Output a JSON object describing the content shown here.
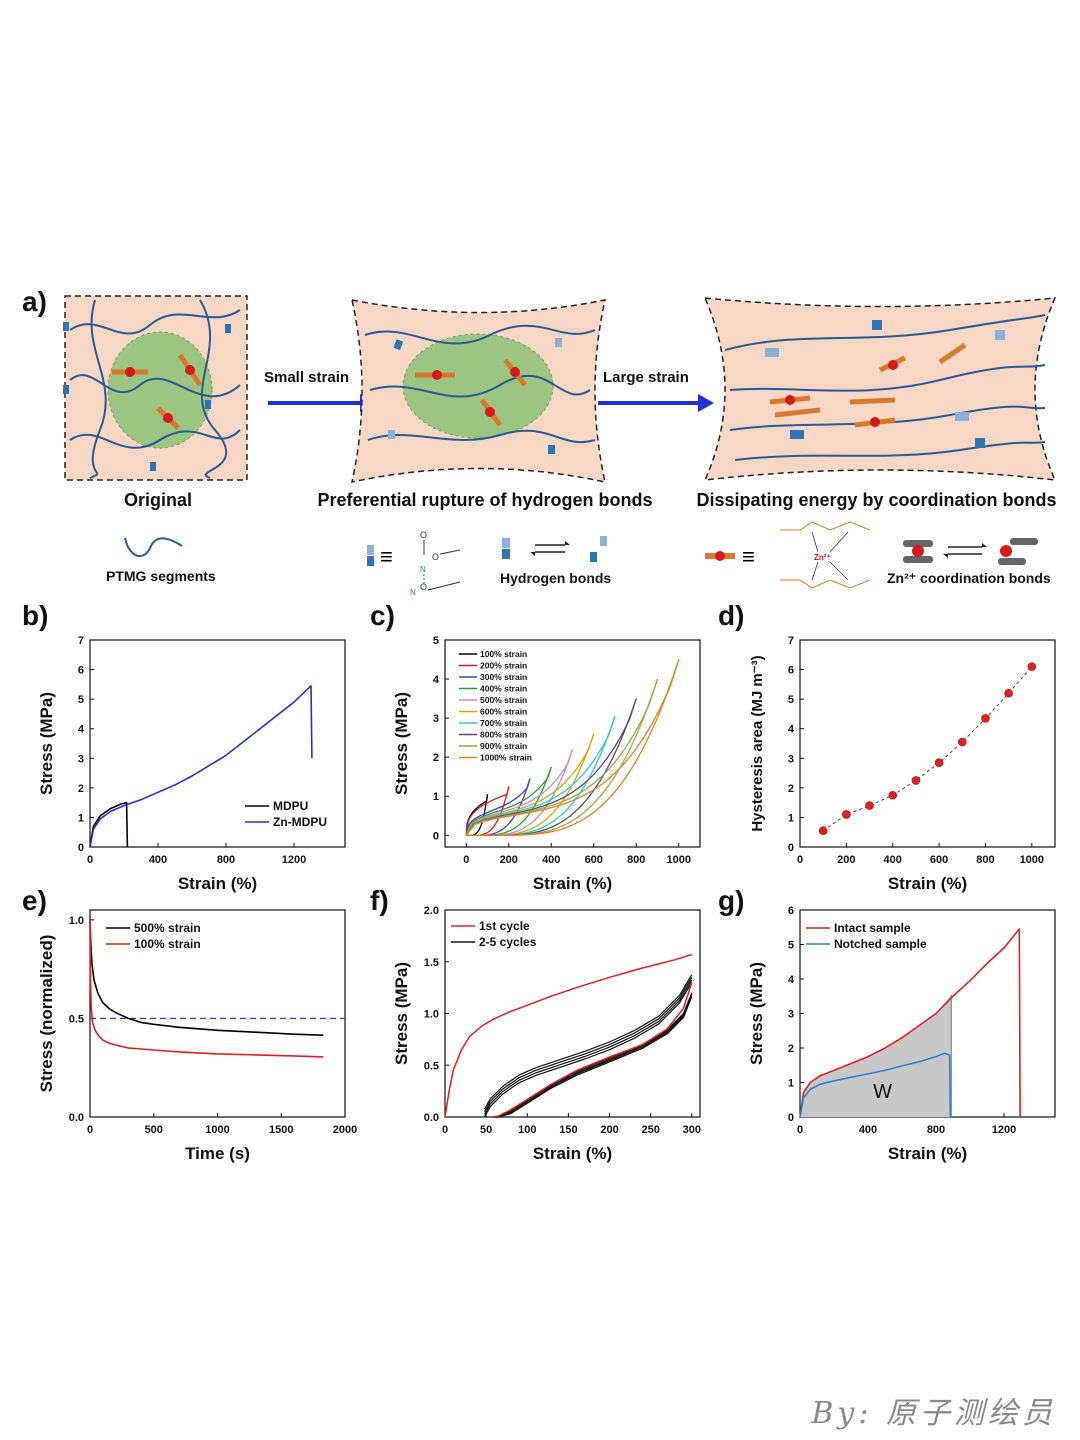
{
  "panel_labels": {
    "a": "a)",
    "b": "b)",
    "c": "c)",
    "d": "d)",
    "e": "e)",
    "f": "f)",
    "g": "g)"
  },
  "schematic": {
    "stage_labels": [
      "Original",
      "Preferential rupture of hydrogen bonds",
      "Dissipating energy by coordination bonds"
    ],
    "arrow_labels": [
      "Small strain",
      "Large strain"
    ],
    "legend": {
      "ptmg": "PTMG segments",
      "hbond": "Hydrogen bonds",
      "coord": "Zn²⁺ coordination bonds",
      "zn": "Zn²⁺"
    },
    "colors": {
      "matrix": "#f9d7c5",
      "domain": "#7cbf6a",
      "chain": "#2a5a95",
      "hb": "#2f75b5",
      "hb_light": "#8cb0d6",
      "arrow": "#1f2fd6",
      "zn": "#d7191c",
      "orange": "#d87a2e"
    }
  },
  "watermark": "By: 原子测绘员",
  "chart_data": [
    {
      "id": "b",
      "type": "line",
      "xlabel": "Strain (%)",
      "ylabel": "Stress (MPa)",
      "xlim": [
        0,
        1500
      ],
      "ylim": [
        0,
        7
      ],
      "xticks": [
        0,
        400,
        800,
        1200
      ],
      "yticks": [
        0,
        1,
        2,
        3,
        4,
        5,
        6,
        7
      ],
      "series": [
        {
          "name": "MDPU",
          "color": "#000000",
          "x": [
            0,
            20,
            60,
            120,
            180,
            215,
            218,
            220
          ],
          "y": [
            0,
            0.7,
            1.05,
            1.3,
            1.45,
            1.5,
            0.5,
            0
          ]
        },
        {
          "name": "Zn-MDPU",
          "color": "#2b2bd6",
          "x": [
            0,
            20,
            60,
            120,
            200,
            300,
            400,
            500,
            600,
            700,
            800,
            900,
            1000,
            1100,
            1200,
            1300,
            1305
          ],
          "y": [
            0,
            0.6,
            0.95,
            1.2,
            1.4,
            1.6,
            1.85,
            2.1,
            2.4,
            2.75,
            3.1,
            3.55,
            4.0,
            4.45,
            4.9,
            5.45,
            3.0
          ]
        }
      ],
      "legend": [
        "MDPU",
        "Zn-MDPU"
      ]
    },
    {
      "id": "c",
      "type": "line",
      "xlabel": "Strain (%)",
      "ylabel": "Stress (MPa)",
      "xlim": [
        -100,
        1100
      ],
      "ylim": [
        -0.3,
        5
      ],
      "xticks": [
        0,
        200,
        400,
        600,
        800,
        1000
      ],
      "yticks": [
        0,
        1,
        2,
        3,
        4,
        5
      ],
      "cycles": [
        {
          "name": "100% strain",
          "color": "#000000",
          "max_strain": 100,
          "peak": 1.05
        },
        {
          "name": "200% strain",
          "color": "#e31a1c",
          "max_strain": 200,
          "peak": 1.25
        },
        {
          "name": "300% strain",
          "color": "#3b3bd6",
          "max_strain": 300,
          "peak": 1.45
        },
        {
          "name": "400% strain",
          "color": "#2ca02c",
          "max_strain": 400,
          "peak": 1.75
        },
        {
          "name": "500% strain",
          "color": "#b58be0",
          "max_strain": 500,
          "peak": 2.2
        },
        {
          "name": "600% strain",
          "color": "#d9a400",
          "max_strain": 600,
          "peak": 2.6
        },
        {
          "name": "700% strain",
          "color": "#30c4d8",
          "max_strain": 700,
          "peak": 3.05
        },
        {
          "name": "800% strain",
          "color": "#5a4a6e",
          "max_strain": 800,
          "peak": 3.5
        },
        {
          "name": "900% strain",
          "color": "#9aa84a",
          "max_strain": 900,
          "peak": 4.0
        },
        {
          "name": "1000% strain",
          "color": "#e0831a",
          "max_strain": 1000,
          "peak": 4.5
        }
      ]
    },
    {
      "id": "d",
      "type": "scatter",
      "xlabel": "Strain (%)",
      "ylabel": "Hysteresis area (MJ m⁻³)",
      "xlim": [
        0,
        1100
      ],
      "ylim": [
        0,
        7
      ],
      "xticks": [
        0,
        200,
        400,
        600,
        800,
        1000
      ],
      "yticks": [
        0,
        1,
        2,
        3,
        4,
        5,
        6,
        7
      ],
      "series": [
        {
          "name": "Hysteresis area",
          "color": "#e02020",
          "x": [
            100,
            200,
            300,
            400,
            500,
            600,
            700,
            800,
            900,
            1000
          ],
          "y": [
            0.55,
            1.1,
            1.4,
            1.75,
            2.25,
            2.85,
            3.55,
            4.35,
            5.2,
            6.1
          ]
        }
      ]
    },
    {
      "id": "e",
      "type": "line",
      "xlabel": "Time (s)",
      "ylabel": "Stress (normalized)",
      "xlim": [
        0,
        2000
      ],
      "ylim": [
        0,
        1.05
      ],
      "xticks": [
        0,
        500,
        1000,
        1500,
        2000
      ],
      "yticks": [
        0.0,
        0.5,
        1.0
      ],
      "ytick_labels": [
        "0.0",
        "0.5",
        "1.0"
      ],
      "reference_line": {
        "y": 0.5,
        "color": "#3a3ad8"
      },
      "series": [
        {
          "name": "500% strain",
          "color": "#000000",
          "x": [
            0,
            5,
            15,
            30,
            60,
            100,
            150,
            200,
            300,
            400,
            500,
            700,
            1000,
            1300,
            1600,
            1830
          ],
          "y": [
            1.0,
            0.9,
            0.78,
            0.7,
            0.63,
            0.58,
            0.55,
            0.53,
            0.5,
            0.48,
            0.47,
            0.455,
            0.44,
            0.43,
            0.42,
            0.415
          ]
        },
        {
          "name": "100% strain",
          "color": "#e02020",
          "x": [
            0,
            3,
            10,
            20,
            40,
            70,
            100,
            150,
            200,
            300,
            400,
            500,
            700,
            1000,
            1300,
            1600,
            1830
          ],
          "y": [
            1.0,
            0.7,
            0.55,
            0.48,
            0.44,
            0.41,
            0.39,
            0.375,
            0.365,
            0.35,
            0.345,
            0.34,
            0.33,
            0.32,
            0.315,
            0.31,
            0.305
          ]
        }
      ],
      "legend": [
        "500% strain",
        "100% strain"
      ]
    },
    {
      "id": "f",
      "type": "line",
      "xlabel": "Strain (%)",
      "ylabel": "Stress (MPa)",
      "xlim": [
        0,
        310
      ],
      "ylim": [
        0,
        2.0
      ],
      "xticks": [
        0,
        50,
        100,
        150,
        200,
        250,
        300
      ],
      "yticks": [
        0.0,
        0.5,
        1.0,
        1.5,
        2.0
      ],
      "ytick_labels": [
        "0.0",
        "0.5",
        "1.0",
        "1.5",
        "2.0"
      ],
      "series": [
        {
          "name": "1st cycle",
          "color": "#e02020",
          "load_x": [
            0,
            5,
            10,
            20,
            30,
            45,
            60,
            80,
            100,
            130,
            160,
            200,
            240,
            280,
            300
          ],
          "load_y": [
            0,
            0.25,
            0.45,
            0.65,
            0.78,
            0.88,
            0.95,
            1.02,
            1.08,
            1.17,
            1.25,
            1.35,
            1.44,
            1.52,
            1.57
          ],
          "unload_x": [
            300,
            290,
            270,
            240,
            200,
            160,
            130,
            100,
            80,
            65,
            58
          ],
          "unload_y": [
            1.3,
            1.05,
            0.85,
            0.7,
            0.58,
            0.45,
            0.32,
            0.17,
            0.07,
            0.01,
            0
          ]
        },
        {
          "name": "2-5 cycles",
          "color": "#111111",
          "load_x": [
            48,
            55,
            70,
            90,
            110,
            140,
            170,
            200,
            230,
            260,
            285,
            300
          ],
          "load_y": [
            0,
            0.1,
            0.22,
            0.33,
            0.4,
            0.48,
            0.56,
            0.65,
            0.76,
            0.9,
            1.1,
            1.3
          ],
          "unload_x": [
            300,
            290,
            270,
            240,
            200,
            160,
            130,
            100,
            80,
            65,
            58
          ],
          "unload_y": [
            1.2,
            1.0,
            0.84,
            0.7,
            0.57,
            0.44,
            0.32,
            0.17,
            0.07,
            0.01,
            0
          ]
        }
      ],
      "legend": [
        "1st cycle",
        "2-5 cycles"
      ]
    },
    {
      "id": "g",
      "type": "area",
      "xlabel": "Strain (%)",
      "ylabel": "Stress (MPa)",
      "xlim": [
        0,
        1500
      ],
      "ylim": [
        0,
        6
      ],
      "xticks": [
        0,
        400,
        800,
        1200
      ],
      "yticks": [
        0,
        1,
        2,
        3,
        4,
        5,
        6
      ],
      "annotation": "W",
      "series": [
        {
          "name": "Intact sample",
          "color": "#e02020",
          "x": [
            0,
            20,
            60,
            120,
            200,
            300,
            400,
            500,
            600,
            700,
            800,
            900,
            1000,
            1100,
            1200,
            1290,
            1295
          ],
          "y": [
            0,
            0.7,
            1.0,
            1.2,
            1.35,
            1.55,
            1.75,
            2.0,
            2.3,
            2.65,
            3.0,
            3.5,
            3.95,
            4.45,
            4.9,
            5.45,
            0
          ]
        },
        {
          "name": "Notched sample",
          "color": "#2f7fd6",
          "x": [
            0,
            20,
            60,
            120,
            200,
            300,
            400,
            500,
            600,
            700,
            800,
            850,
            880,
            885
          ],
          "y": [
            0,
            0.55,
            0.8,
            0.95,
            1.05,
            1.15,
            1.25,
            1.35,
            1.48,
            1.6,
            1.75,
            1.85,
            1.8,
            0
          ]
        }
      ],
      "shaded_until": 890,
      "legend": [
        "Intact sample",
        "Notched sample"
      ]
    }
  ]
}
